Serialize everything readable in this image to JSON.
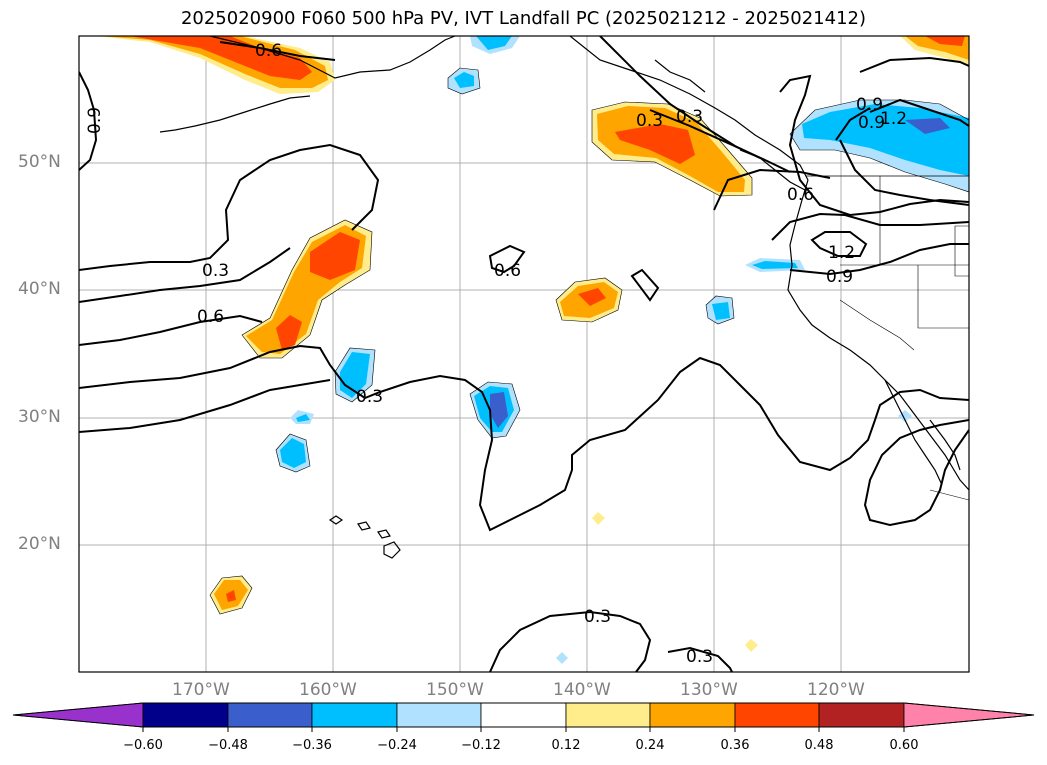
{
  "title": "2025020900 F060 500 hPa PV, IVT Landfall PC (2025021212 - 2025021412)",
  "map": {
    "region": "North Pacific / Western North America",
    "lat_labels": [
      "50°N",
      "40°N",
      "30°N",
      "20°N"
    ],
    "lon_labels": [
      "170°W",
      "160°W",
      "150°W",
      "140°W",
      "130°W",
      "120°W"
    ],
    "contour_labels": [
      "0.6",
      "0.9",
      "0.3",
      "0.6",
      "0.3",
      "0.6",
      "0.3",
      "0.3",
      "0.3",
      "0.6",
      "0.9",
      "1.2",
      "0.9",
      "1.2",
      "0.9",
      "0.3"
    ]
  },
  "colorbar": {
    "ticks": [
      "−0.60",
      "−0.48",
      "−0.36",
      "−0.24",
      "−0.12",
      "0.12",
      "0.24",
      "0.36",
      "0.48",
      "0.60"
    ],
    "colors": [
      "#9932cc",
      "#00008b",
      "#3a5fcd",
      "#00bfff",
      "#b0e2ff",
      "#ffffff",
      "#ffec8b",
      "#ffa500",
      "#ff4500",
      "#b22222",
      "#ff82ab"
    ]
  }
}
